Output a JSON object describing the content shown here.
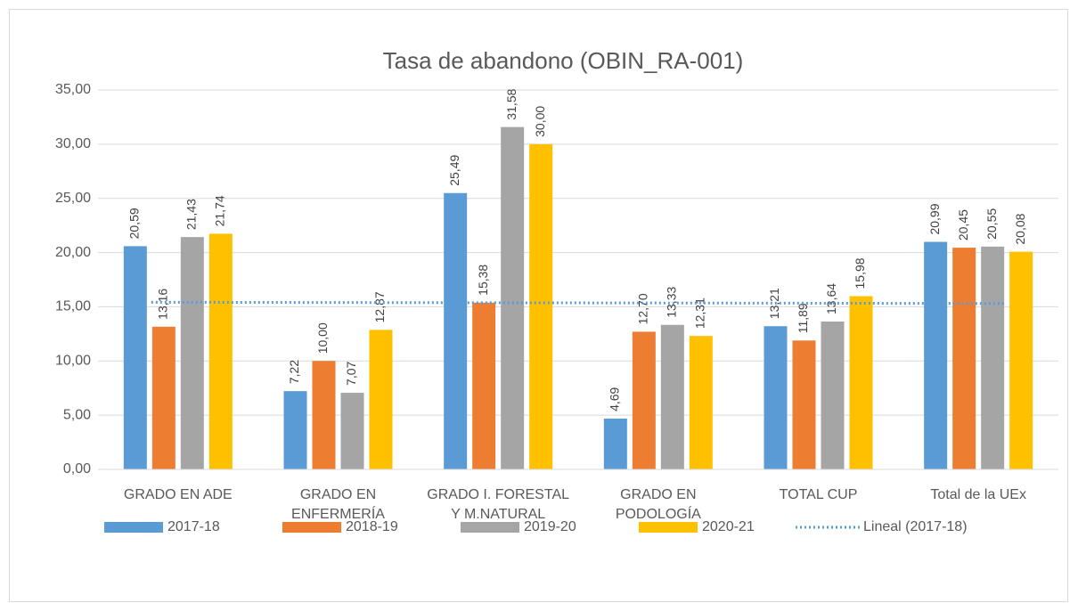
{
  "chart_data": {
    "type": "bar",
    "title": "Tasa de abandono (OBIN_RA-001)",
    "categories": [
      "GRADO EN ADE",
      "GRADO EN ENFERMERÍA",
      "GRADO I. FORESTAL Y M.NATURAL",
      "GRADO EN PODOLOGÍA",
      "TOTAL CUP",
      "Total de la UEx"
    ],
    "series": [
      {
        "name": "2017-18",
        "color": "#5b9bd5",
        "values": [
          20.59,
          7.22,
          25.49,
          4.69,
          13.21,
          20.99
        ],
        "value_labels": [
          "20,59",
          "7,22",
          "25,49",
          "4,69",
          "13,21",
          "20,99"
        ]
      },
      {
        "name": "2018-19",
        "color": "#ed7d31",
        "values": [
          13.16,
          10.0,
          15.38,
          12.7,
          11.89,
          20.45
        ],
        "value_labels": [
          "13,16",
          "10,00",
          "15,38",
          "12,70",
          "11,89",
          "20,45"
        ]
      },
      {
        "name": "2019-20",
        "color": "#a5a5a5",
        "values": [
          21.43,
          7.07,
          31.58,
          13.33,
          13.64,
          20.55
        ],
        "value_labels": [
          "21,43",
          "7,07",
          "31,58",
          "13,33",
          "13,64",
          "20,55"
        ]
      },
      {
        "name": "2020-21",
        "color": "#ffc000",
        "values": [
          21.74,
          12.87,
          30.0,
          12.31,
          15.98,
          20.08
        ],
        "value_labels": [
          "21,74",
          "12,87",
          "30,00",
          "12,31",
          "15,98",
          "20,08"
        ]
      }
    ],
    "trendline": {
      "name": "Lineal (2017-18)",
      "color": "#5b9bd5",
      "values": [
        15.42,
        15.3
      ]
    },
    "ylim": [
      0,
      35
    ],
    "yticks": [
      {
        "value": 0,
        "label": "0,00"
      },
      {
        "value": 5,
        "label": "5,00"
      },
      {
        "value": 10,
        "label": "10,00"
      },
      {
        "value": 15,
        "label": "15,00"
      },
      {
        "value": 20,
        "label": "20,00"
      },
      {
        "value": 25,
        "label": "25,00"
      },
      {
        "value": 30,
        "label": "30,00"
      },
      {
        "value": 35,
        "label": "35,00"
      }
    ],
    "grid": true,
    "legend": "bottom"
  }
}
